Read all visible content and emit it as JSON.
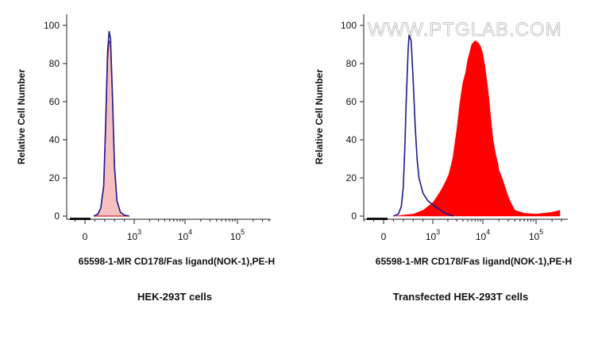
{
  "chart_data": [
    {
      "type": "area",
      "panel": "left",
      "xlabel": "65598-1-MR CD178/Fas ligand(NOK-1),PE-H",
      "ylabel": "Relative Cell Number",
      "caption": "HEK-293T cells",
      "x_scale": "biexponential",
      "xticks": [
        {
          "base": "0",
          "exp": ""
        },
        {
          "base": "10",
          "exp": "3"
        },
        {
          "base": "10",
          "exp": "4"
        },
        {
          "base": "10",
          "exp": "5"
        }
      ],
      "yticks": [
        "0",
        "20",
        "40",
        "60",
        "80",
        "100"
      ],
      "ylim": [
        0,
        100
      ],
      "series": [
        {
          "style": "filled",
          "color": "#f7c0c0",
          "edge_color": "#cc2a2a",
          "x": [
            180,
            260,
            320,
            380,
            420,
            460,
            490,
            520,
            560,
            600,
            650,
            720,
            800,
            900
          ],
          "y": [
            0,
            1,
            4,
            15,
            45,
            82,
            92,
            90,
            60,
            25,
            8,
            2,
            0.5,
            0
          ]
        },
        {
          "style": "line",
          "color": "#1a1a8c",
          "x": [
            180,
            260,
            320,
            380,
            420,
            460,
            490,
            520,
            560,
            600,
            650,
            720,
            800,
            900
          ],
          "y": [
            0,
            1,
            4,
            16,
            48,
            86,
            97,
            93,
            62,
            26,
            8,
            2,
            0.5,
            0
          ]
        }
      ]
    },
    {
      "type": "area",
      "panel": "right",
      "xlabel": "65598-1-MR CD178/Fas ligand(NOK-1),PE-H",
      "ylabel": "Relative Cell Number",
      "caption": "Transfected HEK-293T cells",
      "watermark": "WWW.PTGLAB.COM",
      "x_scale": "biexponential",
      "xticks": [
        {
          "base": "0",
          "exp": ""
        },
        {
          "base": "10",
          "exp": "3"
        },
        {
          "base": "10",
          "exp": "4"
        },
        {
          "base": "10",
          "exp": "5"
        }
      ],
      "yticks": [
        "0",
        "20",
        "40",
        "60",
        "80",
        "100"
      ],
      "ylim": [
        0,
        100
      ],
      "series": [
        {
          "style": "filled",
          "color": "#ff0000",
          "x": [
            250,
            400,
            600,
            800,
            1000,
            1200,
            1500,
            1800,
            2100,
            2500,
            3000,
            3500,
            4000,
            4500,
            5000,
            5500,
            6000,
            7000,
            8000,
            9000,
            10000,
            11000,
            12000,
            13000,
            14000,
            15500,
            17500,
            19000,
            20000,
            23000,
            27000,
            30000,
            35000,
            40000,
            60000,
            100000,
            200000,
            280000
          ],
          "y": [
            0,
            0.5,
            1,
            3,
            7,
            10,
            14,
            18,
            22,
            30,
            45,
            60,
            70,
            75,
            82,
            86,
            90,
            92,
            91,
            89,
            85,
            78,
            70,
            62,
            52,
            40,
            32,
            28,
            24,
            20,
            14,
            10,
            6,
            3,
            1.5,
            1,
            2,
            3
          ]
        },
        {
          "style": "line",
          "color": "#1a1a8c",
          "x": [
            200,
            300,
            360,
            400,
            430,
            460,
            500,
            520,
            560,
            600,
            640,
            680,
            720,
            800,
            900,
            1000,
            1100,
            1300,
            1600,
            2000,
            2600
          ],
          "y": [
            0,
            1,
            5,
            15,
            35,
            60,
            88,
            95,
            92,
            72,
            48,
            30,
            20,
            12,
            8,
            6,
            5,
            4,
            2,
            1,
            0
          ]
        }
      ]
    }
  ]
}
